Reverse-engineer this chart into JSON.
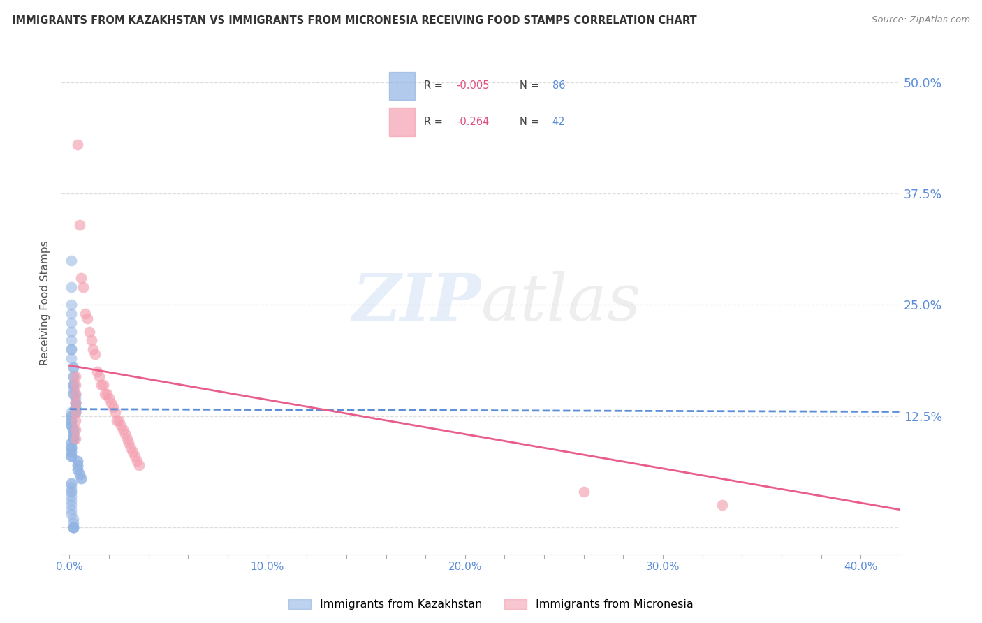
{
  "title": "IMMIGRANTS FROM KAZAKHSTAN VS IMMIGRANTS FROM MICRONESIA RECEIVING FOOD STAMPS CORRELATION CHART",
  "source": "Source: ZipAtlas.com",
  "ylabel": "Receiving Food Stamps",
  "right_yticks": [
    0.0,
    0.125,
    0.25,
    0.375,
    0.5
  ],
  "right_yticklabels": [
    "",
    "12.5%",
    "25.0%",
    "37.5%",
    "50.0%"
  ],
  "xlim": [
    -0.004,
    0.42
  ],
  "ylim": [
    -0.03,
    0.535
  ],
  "xticklabels_bottom": [
    "0.0%",
    "",
    "",
    "",
    "",
    "10.0%",
    "",
    "",
    "",
    "",
    "20.0%",
    "",
    "",
    "",
    "",
    "30.0%",
    "",
    "",
    "",
    "",
    "40.0%"
  ],
  "xticks_bottom": [
    0.0,
    0.02,
    0.04,
    0.06,
    0.08,
    0.1,
    0.12,
    0.14,
    0.16,
    0.18,
    0.2,
    0.22,
    0.24,
    0.26,
    0.28,
    0.3,
    0.32,
    0.34,
    0.36,
    0.38,
    0.4
  ],
  "kazakhstan_color": "#92B4E3",
  "micronesia_color": "#F4A0B0",
  "kazakhstan_line_color": "#5B8DD9",
  "micronesia_line_color": "#E85D8A",
  "background_color": "#FFFFFF",
  "watermark_zip": "ZIP",
  "watermark_atlas": "atlas",
  "grid_color": "#DDDDDD",
  "right_tick_color": "#5B8DD9",
  "bottom_tick_color": "#5B8DD9",
  "legend_r1": "R = -0.005",
  "legend_n1": "N = 86",
  "legend_r2": "R = -0.264",
  "legend_n2": "N = 42",
  "legend_r_color": "#E05080",
  "legend_n_color": "#5B8DD9",
  "kaz_line_x0": 0.0,
  "kaz_line_x1": 0.42,
  "kaz_line_y0": 0.133,
  "kaz_line_y1": 0.13,
  "mic_line_x0": 0.0,
  "mic_line_x1": 0.42,
  "mic_line_y0": 0.182,
  "mic_line_y1": 0.02,
  "kaz_scatter_x": [
    0.001,
    0.001,
    0.001,
    0.001,
    0.001,
    0.001,
    0.001,
    0.001,
    0.001,
    0.001,
    0.002,
    0.002,
    0.002,
    0.002,
    0.002,
    0.002,
    0.002,
    0.002,
    0.002,
    0.002,
    0.003,
    0.003,
    0.003,
    0.003,
    0.003,
    0.003,
    0.003,
    0.003,
    0.003,
    0.003,
    0.001,
    0.001,
    0.001,
    0.001,
    0.001,
    0.001,
    0.001,
    0.001,
    0.001,
    0.001,
    0.002,
    0.002,
    0.002,
    0.002,
    0.002,
    0.002,
    0.002,
    0.002,
    0.002,
    0.002,
    0.001,
    0.001,
    0.001,
    0.001,
    0.001,
    0.001,
    0.001,
    0.001,
    0.001,
    0.001,
    0.004,
    0.004,
    0.004,
    0.004,
    0.004,
    0.004,
    0.005,
    0.005,
    0.006,
    0.006,
    0.001,
    0.001,
    0.001,
    0.001,
    0.001,
    0.001,
    0.001,
    0.001,
    0.001,
    0.001,
    0.002,
    0.002,
    0.002,
    0.002,
    0.002,
    0.002
  ],
  "kaz_scatter_y": [
    0.3,
    0.27,
    0.25,
    0.24,
    0.23,
    0.22,
    0.21,
    0.2,
    0.2,
    0.19,
    0.18,
    0.18,
    0.17,
    0.17,
    0.16,
    0.16,
    0.16,
    0.155,
    0.15,
    0.15,
    0.15,
    0.145,
    0.14,
    0.14,
    0.14,
    0.135,
    0.135,
    0.13,
    0.13,
    0.13,
    0.13,
    0.125,
    0.125,
    0.125,
    0.12,
    0.12,
    0.12,
    0.115,
    0.115,
    0.115,
    0.11,
    0.11,
    0.11,
    0.105,
    0.105,
    0.105,
    0.1,
    0.1,
    0.1,
    0.1,
    0.095,
    0.095,
    0.09,
    0.09,
    0.09,
    0.085,
    0.085,
    0.08,
    0.08,
    0.08,
    0.075,
    0.075,
    0.07,
    0.07,
    0.065,
    0.065,
    0.06,
    0.06,
    0.055,
    0.055,
    0.05,
    0.05,
    0.045,
    0.04,
    0.04,
    0.035,
    0.03,
    0.025,
    0.02,
    0.015,
    0.01,
    0.005,
    0.0,
    0.0,
    0.0,
    0.0
  ],
  "mic_scatter_x": [
    0.004,
    0.005,
    0.006,
    0.007,
    0.008,
    0.009,
    0.01,
    0.011,
    0.012,
    0.013,
    0.014,
    0.015,
    0.016,
    0.017,
    0.018,
    0.019,
    0.02,
    0.021,
    0.022,
    0.023,
    0.024,
    0.025,
    0.026,
    0.027,
    0.028,
    0.029,
    0.03,
    0.031,
    0.032,
    0.033,
    0.034,
    0.035,
    0.003,
    0.003,
    0.003,
    0.003,
    0.003,
    0.003,
    0.003,
    0.003,
    0.26,
    0.33
  ],
  "mic_scatter_y": [
    0.43,
    0.34,
    0.28,
    0.27,
    0.24,
    0.235,
    0.22,
    0.21,
    0.2,
    0.195,
    0.175,
    0.17,
    0.16,
    0.16,
    0.15,
    0.15,
    0.145,
    0.14,
    0.135,
    0.13,
    0.12,
    0.12,
    0.115,
    0.11,
    0.105,
    0.1,
    0.095,
    0.09,
    0.085,
    0.08,
    0.075,
    0.07,
    0.17,
    0.16,
    0.15,
    0.14,
    0.13,
    0.12,
    0.11,
    0.1,
    0.04,
    0.025
  ]
}
